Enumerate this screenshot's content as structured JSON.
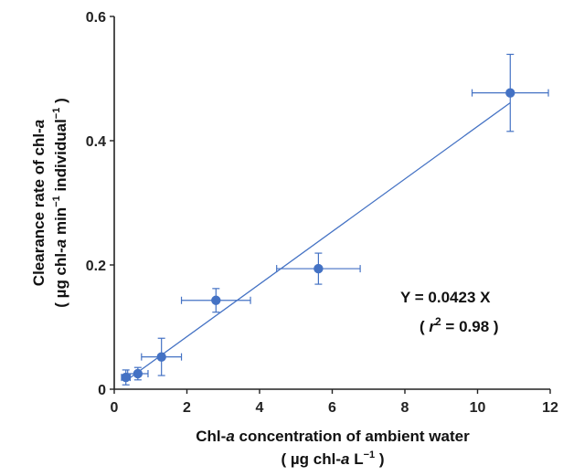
{
  "chart_data": {
    "type": "scatter",
    "title": "",
    "xlabel": {
      "line1_a": "Chl-",
      "line1_b": "a",
      "line1_c": " concentration of ambient water",
      "line2_a": "( µg chl-",
      "line2_b": "a",
      "line2_c": " L",
      "line2_sup": "−1",
      "line2_d": " )"
    },
    "ylabel": {
      "line1_a": "Clearance rate of chl-",
      "line1_b": "a",
      "line2_a": "( µg chl-",
      "line2_b": "a",
      "line2_c": "  min",
      "line2_sup1": "−1",
      "line2_d": "  individual",
      "line2_sup2": "−1",
      "line2_e": " )"
    },
    "xlim": [
      0,
      12
    ],
    "ylim": [
      0,
      0.6
    ],
    "xticks": [
      0,
      2,
      4,
      6,
      8,
      10,
      12
    ],
    "yticks": [
      0,
      0.2,
      0.4,
      0.6
    ],
    "xtick_labels": [
      "0",
      "2",
      "4",
      "6",
      "8",
      "10",
      "12"
    ],
    "ytick_labels": [
      "0",
      "0.2",
      "0.4",
      "0.6"
    ],
    "grid": false,
    "marker_color": "#4472C4",
    "line_color": "#4472C4",
    "points": [
      {
        "x": 0.32,
        "y": 0.019,
        "xerr": 0.12,
        "yerr": 0.012
      },
      {
        "x": 0.65,
        "y": 0.025,
        "xerr": 0.28,
        "yerr": 0.01
      },
      {
        "x": 1.3,
        "y": 0.052,
        "xerr": 0.55,
        "yerr": 0.03
      },
      {
        "x": 2.8,
        "y": 0.143,
        "xerr": 0.95,
        "yerr": 0.019
      },
      {
        "x": 5.62,
        "y": 0.194,
        "xerr": 1.15,
        "yerr": 0.025
      },
      {
        "x": 10.9,
        "y": 0.477,
        "xerr": 1.05,
        "yerr": 0.062
      }
    ],
    "fit": {
      "slope": 0.0423,
      "x_start": 0.3,
      "x_end": 10.9
    },
    "annotations": {
      "equation": "Y = 0.0423 X",
      "r2_open": "( ",
      "r2_r": "r",
      "r2_sup": "2",
      "r2_rest": " = 0.98 )"
    }
  }
}
